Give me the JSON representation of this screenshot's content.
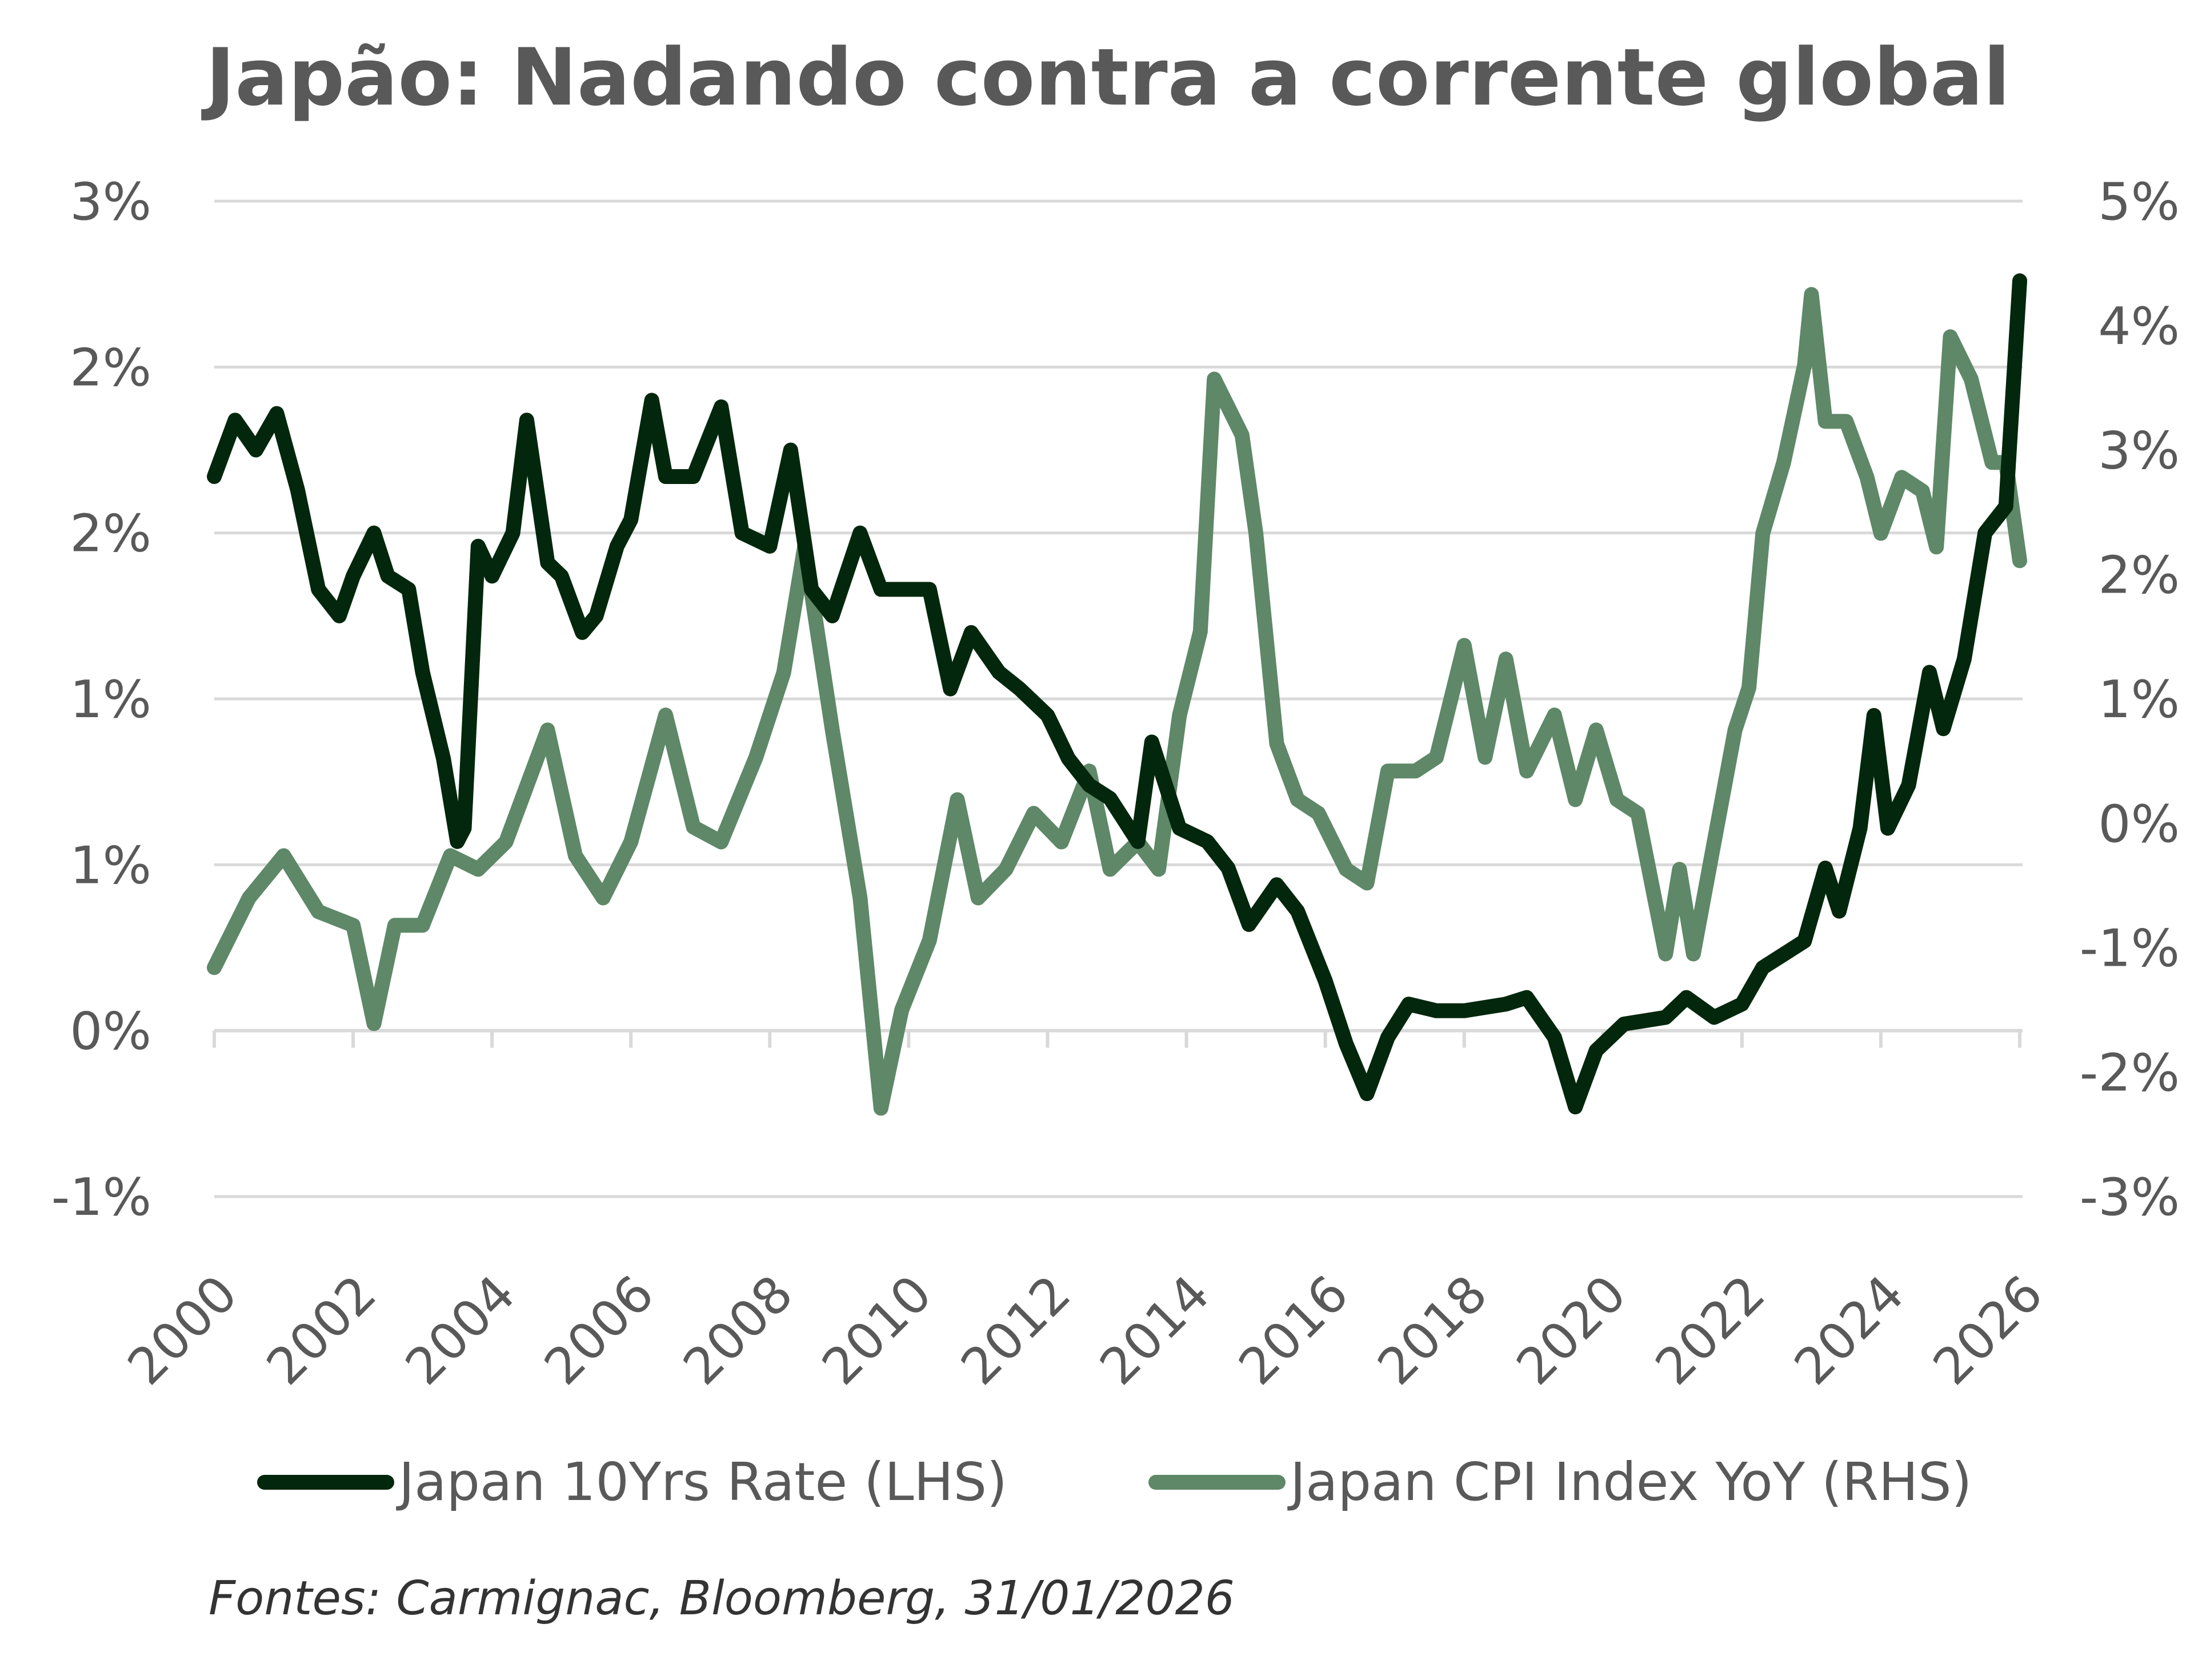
{
  "chart_data": {
    "type": "line",
    "title": "Japão: Nadando contra a corrente global",
    "source": "Fontes: Carmignac, Bloomberg, 31/01/2026",
    "xlabel": "",
    "x_ticks": [
      "2000",
      "2002",
      "2004",
      "2006",
      "2008",
      "2010",
      "2012",
      "2014",
      "2016",
      "2018",
      "2020",
      "2022",
      "2024",
      "2026"
    ],
    "xlim": [
      2000,
      2026
    ],
    "left_axis": {
      "label": "Japan 10Yrs Rate (LHS)",
      "ylim": [
        -0.5,
        2.5
      ],
      "tick_values": [
        2.5,
        2.0,
        1.5,
        1.0,
        0.5,
        0.0,
        -0.5
      ],
      "tick_labels": [
        "3%",
        "2%",
        "2%",
        "1%",
        "1%",
        "0%",
        "-1%"
      ]
    },
    "right_axis": {
      "label": "Japan CPI Index YoY (RHS)",
      "ylim": [
        -3,
        5
      ],
      "tick_values": [
        5,
        4,
        3,
        2,
        1,
        0,
        -1,
        -2,
        -3
      ],
      "tick_labels": [
        "5%",
        "4%",
        "3%",
        "2%",
        "1%",
        "0%",
        "-1%",
        "-2%",
        "-3%"
      ]
    },
    "grid": true,
    "legend_position": "bottom",
    "series": [
      {
        "name": "Japan 10Yrs Rate (LHS)",
        "axis": "left",
        "color": "#03270c",
        "x": [
          2000.0,
          2000.3,
          2000.6,
          2000.9,
          2001.2,
          2001.5,
          2001.8,
          2002.0,
          2002.3,
          2002.5,
          2002.8,
          2003.0,
          2003.3,
          2003.5,
          2003.6,
          2003.8,
          2004.0,
          2004.3,
          2004.5,
          2004.8,
          2005.0,
          2005.3,
          2005.5,
          2005.8,
          2006.0,
          2006.3,
          2006.5,
          2006.9,
          2007.3,
          2007.6,
          2008.0,
          2008.3,
          2008.6,
          2008.9,
          2009.3,
          2009.6,
          2010.0,
          2010.3,
          2010.6,
          2010.9,
          2011.3,
          2011.6,
          2012.0,
          2012.3,
          2012.6,
          2012.9,
          2013.3,
          2013.5,
          2013.9,
          2014.3,
          2014.6,
          2014.9,
          2015.3,
          2015.6,
          2016.0,
          2016.3,
          2016.6,
          2016.9,
          2017.2,
          2017.6,
          2018.0,
          2018.6,
          2018.9,
          2019.3,
          2019.6,
          2019.9,
          2020.3,
          2020.9,
          2021.2,
          2021.6,
          2022.0,
          2022.3,
          2022.6,
          2022.9,
          2023.2,
          2023.4,
          2023.7,
          2023.9,
          2024.1,
          2024.4,
          2024.7,
          2024.9,
          2025.2,
          2025.5,
          2025.8,
          2026.0
        ],
        "values": [
          1.67,
          1.84,
          1.75,
          1.86,
          1.63,
          1.33,
          1.25,
          1.37,
          1.5,
          1.37,
          1.33,
          1.08,
          0.82,
          0.57,
          0.61,
          1.46,
          1.37,
          1.5,
          1.84,
          1.41,
          1.37,
          1.2,
          1.25,
          1.46,
          1.54,
          1.9,
          1.67,
          1.67,
          1.88,
          1.5,
          1.46,
          1.75,
          1.33,
          1.25,
          1.5,
          1.33,
          1.33,
          1.33,
          1.03,
          1.2,
          1.08,
          1.03,
          0.95,
          0.82,
          0.74,
          0.7,
          0.57,
          0.87,
          0.61,
          0.57,
          0.49,
          0.32,
          0.44,
          0.36,
          0.15,
          -0.04,
          -0.19,
          -0.02,
          0.08,
          0.06,
          0.06,
          0.08,
          0.1,
          -0.02,
          -0.23,
          -0.06,
          0.02,
          0.04,
          0.1,
          0.04,
          0.08,
          0.19,
          0.23,
          0.27,
          0.49,
          0.36,
          0.61,
          0.95,
          0.61,
          0.74,
          1.08,
          0.91,
          1.12,
          1.5,
          1.58,
          2.26
        ]
      },
      {
        "name": "Japan CPI Index YoY (RHS)",
        "axis": "right",
        "color": "#5e8868",
        "x": [
          2000.0,
          2000.5,
          2001.0,
          2001.5,
          2002.0,
          2002.3,
          2002.6,
          2003.0,
          2003.4,
          2003.8,
          2004.2,
          2004.8,
          2005.2,
          2005.6,
          2006.0,
          2006.5,
          2006.9,
          2007.3,
          2007.8,
          2008.2,
          2008.5,
          2008.9,
          2009.3,
          2009.6,
          2009.9,
          2010.3,
          2010.7,
          2011.0,
          2011.4,
          2011.8,
          2012.2,
          2012.6,
          2012.9,
          2013.3,
          2013.6,
          2013.9,
          2014.2,
          2014.4,
          2014.8,
          2015.0,
          2015.3,
          2015.6,
          2015.9,
          2016.3,
          2016.6,
          2016.9,
          2017.3,
          2017.6,
          2018.0,
          2018.3,
          2018.6,
          2018.9,
          2019.3,
          2019.6,
          2019.9,
          2020.2,
          2020.5,
          2020.9,
          2021.1,
          2021.3,
          2021.6,
          2021.9,
          2022.1,
          2022.3,
          2022.6,
          2022.9,
          2023.0,
          2023.2,
          2023.5,
          2023.8,
          2024.0,
          2024.3,
          2024.6,
          2024.8,
          2025.0,
          2025.3,
          2025.6,
          2025.8,
          2026.0
        ],
        "values": [
          -1.16,
          -0.6,
          -0.26,
          -0.71,
          -0.82,
          -1.61,
          -0.82,
          -0.82,
          -0.26,
          -0.37,
          -0.15,
          0.75,
          -0.26,
          -0.6,
          -0.15,
          0.87,
          -0.03,
          -0.15,
          0.53,
          1.21,
          2.22,
          0.75,
          -0.6,
          -2.29,
          -1.5,
          -0.94,
          0.19,
          -0.6,
          -0.37,
          0.08,
          -0.15,
          0.42,
          -0.37,
          -0.15,
          -0.37,
          0.87,
          1.54,
          3.57,
          3.12,
          2.33,
          0.64,
          0.19,
          0.08,
          -0.37,
          -0.48,
          0.42,
          0.42,
          0.53,
          1.43,
          0.53,
          1.32,
          0.42,
          0.87,
          0.19,
          0.75,
          0.19,
          0.08,
          -1.05,
          -0.37,
          -1.05,
          -0.15,
          0.75,
          1.09,
          2.33,
          2.9,
          3.68,
          4.25,
          3.23,
          3.23,
          2.78,
          2.33,
          2.78,
          2.67,
          2.22,
          3.91,
          3.57,
          2.9,
          2.9,
          2.11
        ]
      }
    ]
  }
}
